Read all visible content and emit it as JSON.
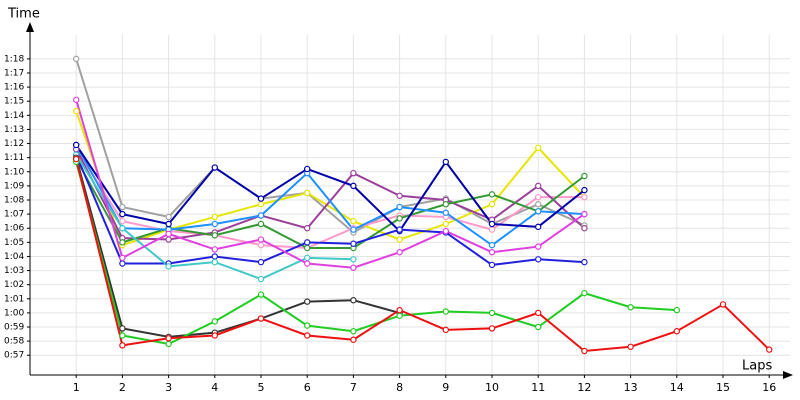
{
  "chart_data": {
    "type": "line",
    "y_label": "Time",
    "x_label": "Laps",
    "xlim": [
      0,
      16.45
    ],
    "ylim": [
      55.6,
      80.4
    ],
    "xticks": [
      1,
      2,
      3,
      4,
      5,
      6,
      7,
      8,
      9,
      10,
      11,
      12,
      13,
      14,
      15,
      16
    ],
    "yticks": [
      {
        "value": 57,
        "label": "0:57"
      },
      {
        "value": 58,
        "label": "0:58"
      },
      {
        "value": 59,
        "label": "0:59"
      },
      {
        "value": 60,
        "label": "1:00"
      },
      {
        "value": 61,
        "label": "1:01"
      },
      {
        "value": 62,
        "label": "1:02"
      },
      {
        "value": 63,
        "label": "1:03"
      },
      {
        "value": 64,
        "label": "1:04"
      },
      {
        "value": 65,
        "label": "1:05"
      },
      {
        "value": 66,
        "label": "1:06"
      },
      {
        "value": 67,
        "label": "1:07"
      },
      {
        "value": 68,
        "label": "1:08"
      },
      {
        "value": 69,
        "label": "1:09"
      },
      {
        "value": 70,
        "label": "1:10"
      },
      {
        "value": 71,
        "label": "1:11"
      },
      {
        "value": 72,
        "label": "1:12"
      },
      {
        "value": 73,
        "label": "1:13"
      },
      {
        "value": 74,
        "label": "1:14"
      },
      {
        "value": 75,
        "label": "1:15"
      },
      {
        "value": 76,
        "label": "1:16"
      },
      {
        "value": 77,
        "label": "1:17"
      },
      {
        "value": 78,
        "label": "1:18"
      }
    ],
    "grid": true,
    "x": [
      1,
      2,
      3,
      4,
      5,
      6,
      7,
      8,
      9,
      10,
      11,
      12,
      13,
      14,
      15,
      16
    ],
    "series": [
      {
        "color": "#a0a0a0",
        "values": [
          78.0,
          67.5,
          66.8,
          70.3,
          68.1,
          68.5,
          65.7,
          67.5,
          68.1,
          66.3,
          67.7,
          66.2,
          null,
          null,
          null,
          null
        ]
      },
      {
        "color": "#e6e600",
        "values": [
          74.3,
          64.8,
          65.9,
          66.8,
          67.7,
          68.5,
          66.5,
          65.2,
          66.3,
          67.7,
          71.7,
          68.2,
          null,
          null,
          null,
          null
        ]
      },
      {
        "color": "#ff99cc",
        "values": [
          71.6,
          66.5,
          65.8,
          65.5,
          64.8,
          64.6,
          66.0,
          66.9,
          66.8,
          65.9,
          68.2,
          68.2,
          null,
          null,
          null,
          null
        ]
      },
      {
        "color": "#9a3f9a",
        "values": [
          71.6,
          65.3,
          65.2,
          65.7,
          66.9,
          66.0,
          69.9,
          68.3,
          68.0,
          66.6,
          69.0,
          66.0,
          null,
          null,
          null,
          null
        ]
      },
      {
        "color": "#339933",
        "values": [
          70.9,
          65.0,
          66.0,
          65.5,
          66.3,
          64.6,
          64.6,
          66.7,
          67.7,
          68.4,
          67.2,
          69.7,
          null,
          null,
          null,
          null
        ]
      },
      {
        "color": "#1e90ff",
        "values": [
          71.9,
          66.0,
          65.9,
          66.3,
          66.9,
          69.9,
          65.9,
          67.5,
          67.1,
          64.8,
          67.2,
          67.0,
          null,
          null,
          null,
          null
        ]
      },
      {
        "color": "#0000aa",
        "values": [
          71.9,
          67.0,
          66.3,
          70.3,
          68.1,
          70.2,
          69.0,
          65.8,
          70.7,
          66.3,
          66.1,
          68.7,
          null,
          null,
          null,
          null
        ]
      },
      {
        "color": "#2020dd",
        "values": [
          71.2,
          63.5,
          63.5,
          64.0,
          63.6,
          65.0,
          64.9,
          65.9,
          65.7,
          63.4,
          63.8,
          63.6,
          null,
          null,
          null,
          null
        ]
      },
      {
        "color": "#40c8c8",
        "values": [
          71.2,
          66.0,
          63.3,
          63.6,
          62.4,
          63.9,
          63.8,
          null,
          null,
          null,
          null,
          null,
          null,
          null,
          null,
          null
        ]
      },
      {
        "color": "#e040e0",
        "values": [
          75.1,
          63.9,
          65.6,
          64.5,
          65.2,
          63.5,
          63.2,
          64.3,
          65.8,
          64.3,
          64.7,
          67.0,
          null,
          null,
          null,
          null
        ]
      },
      {
        "color": "#333333",
        "values": [
          71.0,
          58.9,
          58.3,
          58.6,
          59.6,
          60.8,
          60.9,
          60.0,
          null,
          null,
          null,
          null,
          null,
          null,
          null,
          null
        ]
      },
      {
        "color": "#22cc22",
        "values": [
          70.7,
          58.4,
          57.8,
          59.4,
          61.3,
          59.1,
          58.7,
          59.8,
          60.1,
          60.0,
          59.0,
          61.4,
          60.4,
          60.2,
          null,
          null
        ]
      },
      {
        "color": "#ee1111",
        "values": [
          70.9,
          57.7,
          58.2,
          58.4,
          59.6,
          58.4,
          58.1,
          60.2,
          58.8,
          58.9,
          60.0,
          57.3,
          57.6,
          58.7,
          60.6,
          57.4
        ]
      }
    ]
  }
}
